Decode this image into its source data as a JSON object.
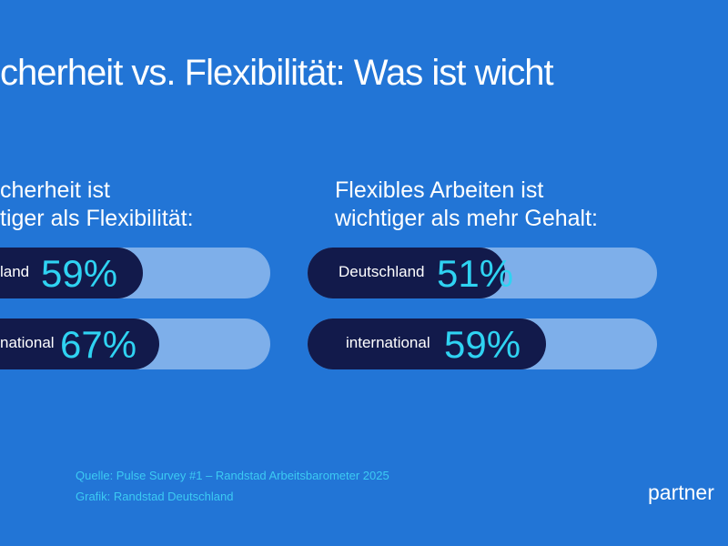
{
  "title": "cherheit vs. Flexibilität: Was ist wicht",
  "chart_data": [
    {
      "type": "bar",
      "title": "cherheit ist tiger als Flexibilität:",
      "title_lines": [
        "cherheit ist",
        "tiger als Flexibilität:"
      ],
      "categories": [
        "land",
        "national"
      ],
      "values": [
        59,
        67
      ],
      "value_labels": [
        "59%",
        "67%"
      ],
      "ylim": [
        0,
        100
      ]
    },
    {
      "type": "bar",
      "title": "Flexibles Arbeiten ist wichtiger als mehr Gehalt:",
      "title_lines": [
        "Flexibles Arbeiten ist",
        "wichtiger als mehr Gehalt:"
      ],
      "categories": [
        "Deutschland",
        "international"
      ],
      "values": [
        51,
        59
      ],
      "value_labels": [
        "51%",
        "59%"
      ],
      "ylim": [
        0,
        100
      ]
    }
  ],
  "footer": {
    "source": "Quelle: Pulse Survey #1 – Randstad Arbeitsbarometer 2025",
    "credit": "Grafik: Randstad Deutschland",
    "logo": "partner"
  },
  "colors": {
    "background": "#2275d6",
    "bar": "#121a4b",
    "track": "#7eafea",
    "value": "#2fd3f2"
  }
}
